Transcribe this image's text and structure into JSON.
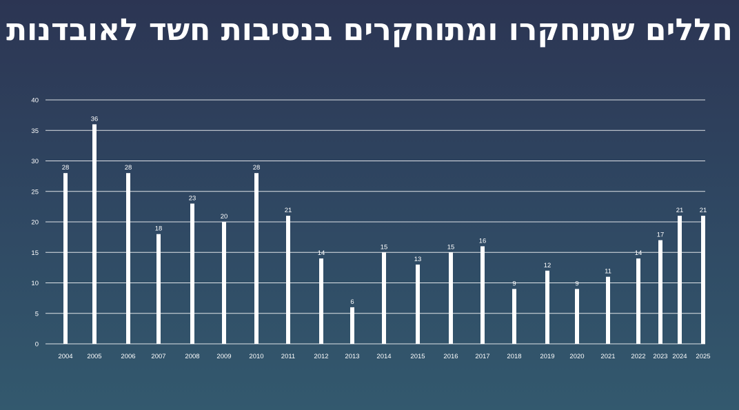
{
  "title": "חללים שתוחקרו ומתוחקרים בנסיבות חשד לאובדנות",
  "chart_data": {
    "type": "bar",
    "title": "חללים שתוחקרו ומתוחקרים בנסיבות חשד לאובדנות",
    "xlabel": "",
    "ylabel": "",
    "ylim": [
      0,
      40
    ],
    "yticks": [
      0,
      5,
      10,
      15,
      20,
      25,
      30,
      35,
      40
    ],
    "grid": true,
    "categories": [
      "2004",
      "2005",
      "2006",
      "2007",
      "2008",
      "2009",
      "2010",
      "2011",
      "2012",
      "2013",
      "2014",
      "2015",
      "2016",
      "2017",
      "2018",
      "2019",
      "2020",
      "2021",
      "2022",
      "2023",
      "2024",
      "2025"
    ],
    "values": [
      28,
      36,
      28,
      18,
      23,
      20,
      28,
      21,
      14,
      6,
      15,
      13,
      15,
      16,
      9,
      12,
      9,
      11,
      14,
      17,
      21,
      21
    ],
    "colors": {
      "bar": "#ffffff",
      "grid": "#ffffff",
      "text": "#ffffff"
    }
  }
}
